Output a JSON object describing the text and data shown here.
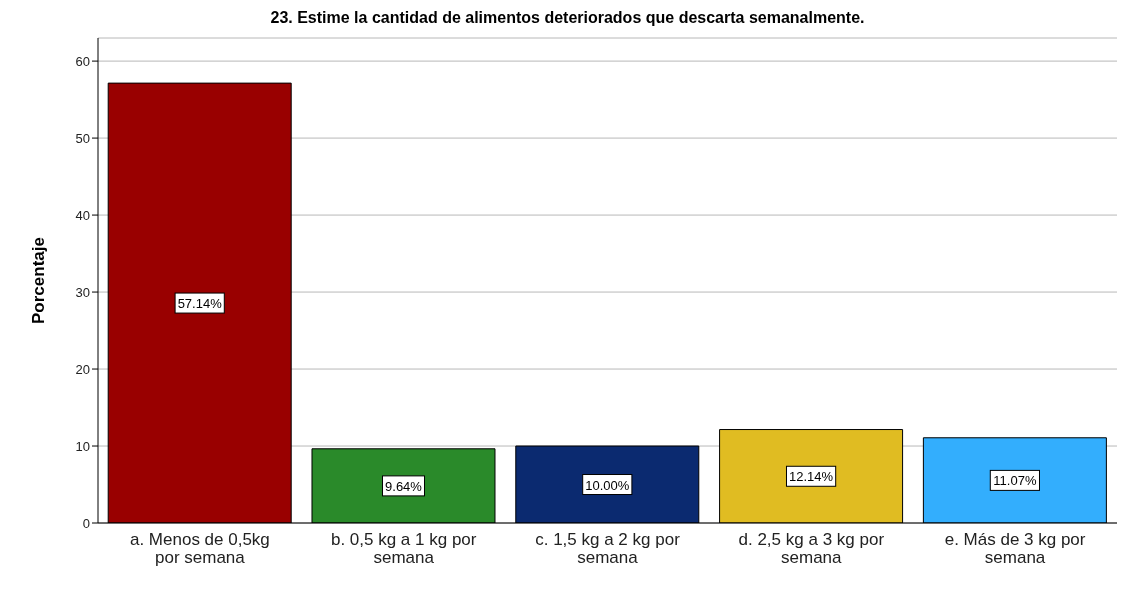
{
  "chart_data": {
    "type": "bar",
    "title": "23. Estime la cantidad de alimentos deteriorados que descarta semanalmente.",
    "ylabel": "Porcentaje",
    "categories": [
      "a. Menos de 0,5kg por semana",
      "b. 0,5 kg a 1 kg por semana",
      "c. 1,5 kg a 2 kg por semana",
      "d. 2,5 kg a 3 kg por semana",
      "e. Más de 3 kg por semana"
    ],
    "values": [
      57.14,
      9.64,
      10.0,
      12.14,
      11.07
    ],
    "colors": [
      "#990000",
      "#2a8a2a",
      "#0b2a70",
      "#e0bc22",
      "#33aefd"
    ],
    "value_labels": [
      "57.14%",
      "9.64%",
      "10.00%",
      "12.14%",
      "11.07%"
    ],
    "ylim": [
      0,
      63
    ],
    "yticks": [
      0,
      10,
      20,
      30,
      40,
      50,
      60
    ],
    "grid": "y"
  }
}
